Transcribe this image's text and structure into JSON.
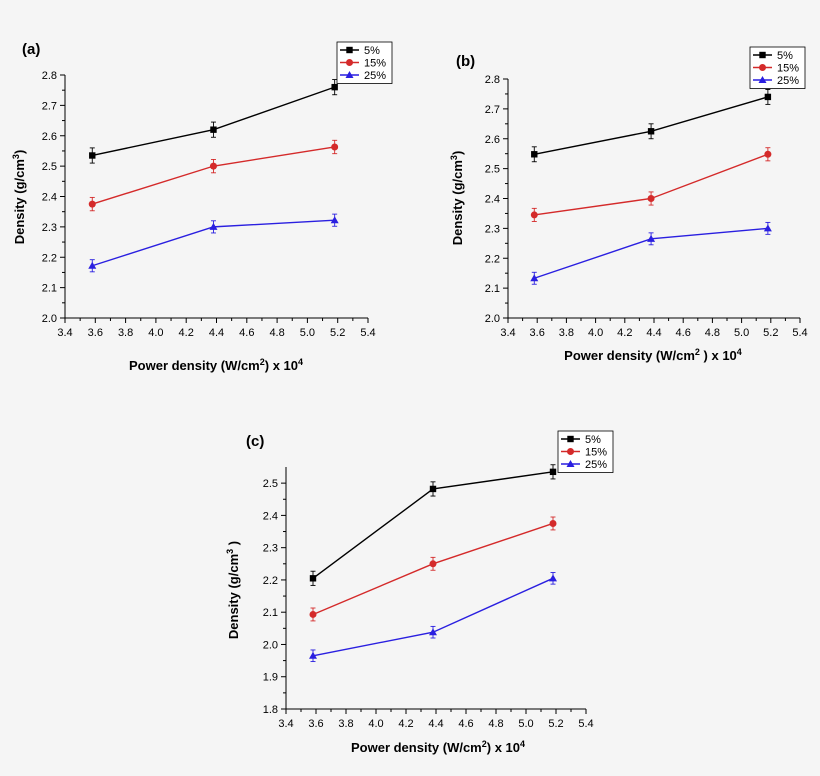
{
  "colors": {
    "s5": "#000000",
    "s15": "#d42a2a",
    "s25": "#2a1fe0"
  },
  "chart_data": [
    {
      "id": "a",
      "type": "line",
      "panel_label": "(a)",
      "xlabel_main": "Power density (W/cm",
      "xlabel_sup": "2",
      "xlabel_close": ") x 10",
      "xlabel_exp": "4",
      "ylabel_main": "Density (g/cm",
      "ylabel_sup": "3",
      "ylabel_close": ")",
      "xlim": [
        3.4,
        5.4
      ],
      "ylim": [
        2.0,
        2.8
      ],
      "xticks": [
        "3.4",
        "3.6",
        "3.8",
        "4.0",
        "4.2",
        "4.4",
        "4.6",
        "4.8",
        "5.0",
        "5.2",
        "5.4"
      ],
      "yticks": [
        "2.0",
        "2.1",
        "2.2",
        "2.3",
        "2.4",
        "2.5",
        "2.6",
        "2.7",
        "2.8"
      ],
      "x": [
        3.58,
        4.38,
        5.18
      ],
      "legend_position": "top-right",
      "series": [
        {
          "name": "5%",
          "marker": "square",
          "color_key": "s5",
          "values": [
            2.535,
            2.62,
            2.76
          ],
          "err": [
            0.025,
            0.025,
            0.025
          ]
        },
        {
          "name": "15%",
          "marker": "circle",
          "color_key": "s15",
          "values": [
            2.375,
            2.5,
            2.563
          ],
          "err": [
            0.022,
            0.022,
            0.022
          ]
        },
        {
          "name": "25%",
          "marker": "triangle",
          "color_key": "s25",
          "values": [
            2.172,
            2.3,
            2.322
          ],
          "err": [
            0.02,
            0.02,
            0.02
          ]
        }
      ]
    },
    {
      "id": "b",
      "type": "line",
      "panel_label": "(b)",
      "xlabel_main": "Power density (W/cm",
      "xlabel_sup": "2",
      "xlabel_close": " ) x 10",
      "xlabel_exp": "4",
      "ylabel_main": "Density (g/cm",
      "ylabel_sup": "3",
      "ylabel_close": ")",
      "xlim": [
        3.4,
        5.4
      ],
      "ylim": [
        2.0,
        2.8
      ],
      "xticks": [
        "3.4",
        "3.6",
        "3.8",
        "4.0",
        "4.2",
        "4.4",
        "4.6",
        "4.8",
        "5.0",
        "5.2",
        "5.4"
      ],
      "yticks": [
        "2.0",
        "2.1",
        "2.2",
        "2.3",
        "2.4",
        "2.5",
        "2.6",
        "2.7",
        "2.8"
      ],
      "x": [
        3.58,
        4.38,
        5.18
      ],
      "legend_position": "top-right",
      "series": [
        {
          "name": "5%",
          "marker": "square",
          "color_key": "s5",
          "values": [
            2.548,
            2.625,
            2.74
          ],
          "err": [
            0.025,
            0.025,
            0.025
          ]
        },
        {
          "name": "15%",
          "marker": "circle",
          "color_key": "s15",
          "values": [
            2.345,
            2.4,
            2.548
          ],
          "err": [
            0.022,
            0.022,
            0.022
          ]
        },
        {
          "name": "25%",
          "marker": "triangle",
          "color_key": "s25",
          "values": [
            2.133,
            2.265,
            2.3
          ],
          "err": [
            0.02,
            0.02,
            0.02
          ]
        }
      ]
    },
    {
      "id": "c",
      "type": "line",
      "panel_label": "(c)",
      "xlabel_main": "Power density (W/cm",
      "xlabel_sup": "2",
      "xlabel_close": ") x 10",
      "xlabel_exp": "4",
      "ylabel_main": "Density (g/cm",
      "ylabel_sup": "3",
      "ylabel_close": " )",
      "xlim": [
        3.4,
        5.4
      ],
      "ylim": [
        1.8,
        2.55
      ],
      "xticks": [
        "3.4",
        "3.6",
        "3.8",
        "4.0",
        "4.2",
        "4.4",
        "4.6",
        "4.8",
        "5.0",
        "5.2",
        "5.4"
      ],
      "yticks": [
        "1.8",
        "1.9",
        "2.0",
        "2.1",
        "2.2",
        "2.3",
        "2.4",
        "2.5"
      ],
      "x": [
        3.58,
        4.38,
        5.18
      ],
      "legend_position": "top-right",
      "series": [
        {
          "name": "5%",
          "marker": "square",
          "color_key": "s5",
          "values": [
            2.205,
            2.482,
            2.535
          ],
          "err": [
            0.022,
            0.022,
            0.022
          ]
        },
        {
          "name": "15%",
          "marker": "circle",
          "color_key": "s15",
          "values": [
            2.093,
            2.25,
            2.375
          ],
          "err": [
            0.02,
            0.02,
            0.02
          ]
        },
        {
          "name": "25%",
          "marker": "triangle",
          "color_key": "s25",
          "values": [
            1.965,
            2.038,
            2.205
          ],
          "err": [
            0.018,
            0.018,
            0.018
          ]
        }
      ]
    }
  ]
}
